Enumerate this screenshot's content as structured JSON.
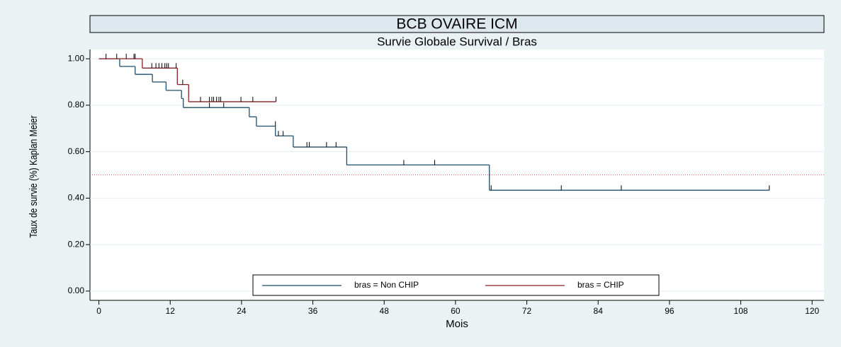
{
  "chart_data": {
    "type": "kaplan-meier",
    "title": "BCB OVAIRE ICM",
    "subtitle": "Survie Globale Survival / Bras",
    "x_label": "Mois",
    "y_label": "Taux de survie (%) Kaplan Meier",
    "xlim": [
      -1.5,
      122
    ],
    "ylim": [
      -0.04,
      1.04
    ],
    "xticks": [
      0,
      12,
      24,
      36,
      48,
      60,
      72,
      84,
      96,
      108,
      120
    ],
    "yticks": [
      {
        "value": 0,
        "label": "0.00"
      },
      {
        "value": 0.2,
        "label": "0.20"
      },
      {
        "value": 0.4,
        "label": "0.40"
      },
      {
        "value": 0.6,
        "label": "0.60"
      },
      {
        "value": 0.8,
        "label": "0.80"
      },
      {
        "value": 1,
        "label": "1.00"
      }
    ],
    "grid": true,
    "reference_line": 0.5,
    "reference_color": "#e06060",
    "series": [
      {
        "name": "bras = Non CHIP",
        "color": "#1f4e6e",
        "x": [
          0,
          3.5,
          6.1,
          9.0,
          11.3,
          13.9,
          14.2,
          25.3,
          26.5,
          29.7,
          32.7,
          41.7,
          65.7,
          112.8
        ],
        "values": [
          1,
          0.967,
          0.933,
          0.9,
          0.864,
          0.829,
          0.79,
          0.75,
          0.71,
          0.668,
          0.62,
          0.543,
          0.434,
          0.434
        ],
        "censored": {
          "x": [
            18.6,
            21.0,
            29.7,
            30.2,
            31.0,
            35.0,
            35.4,
            38.3,
            39.9,
            51.3,
            56.5,
            66.0,
            77.8,
            87.9,
            112.8
          ],
          "values": [
            0.79,
            0.79,
            0.71,
            0.668,
            0.668,
            0.62,
            0.62,
            0.62,
            0.62,
            0.543,
            0.543,
            0.434,
            0.434,
            0.434,
            0.434
          ]
        }
      },
      {
        "name": "bras = CHIP",
        "color": "#8b2020",
        "x": [
          0,
          7.3,
          13.2,
          15.1,
          29.8
        ],
        "values": [
          1,
          0.96,
          0.889,
          0.815,
          0.815
        ],
        "censored": {
          "x": [
            1.2,
            3.0,
            4.6,
            5.9,
            6.1,
            8.9,
            9.6,
            10.1,
            10.6,
            11.1,
            11.4,
            11.7,
            13.0,
            14.1,
            17.1,
            18.6,
            19.0,
            19.3,
            19.8,
            20.2,
            20.5,
            23.9,
            25.9,
            29.8
          ],
          "values": [
            1,
            1,
            1,
            1,
            1,
            0.96,
            0.96,
            0.96,
            0.96,
            0.96,
            0.96,
            0.96,
            0.96,
            0.889,
            0.815,
            0.815,
            0.815,
            0.815,
            0.815,
            0.815,
            0.815,
            0.815,
            0.815,
            0.815
          ]
        }
      }
    ]
  }
}
